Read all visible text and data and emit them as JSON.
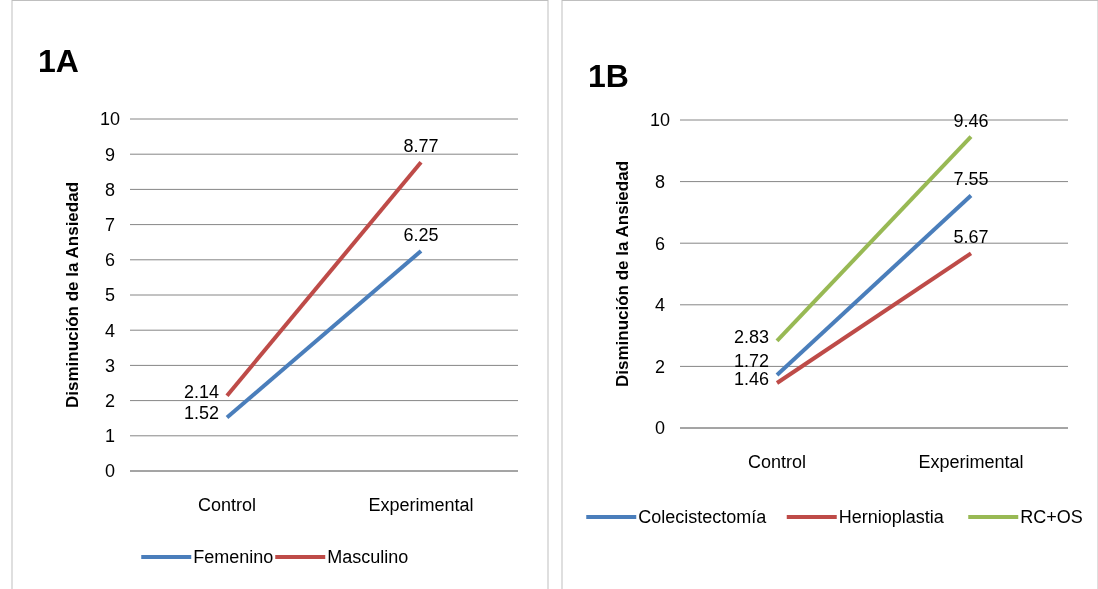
{
  "chart_data": [
    {
      "type": "line",
      "title": "1A",
      "ylabel": "Disminución de la Ansiedad",
      "categories": [
        "Control",
        "Experimental"
      ],
      "series": [
        {
          "name": "Femenino",
          "color": "#4a7ebb",
          "values": [
            1.52,
            6.25
          ]
        },
        {
          "name": "Masculino",
          "color": "#be4b48",
          "values": [
            2.14,
            8.77
          ]
        }
      ],
      "ylim": [
        0,
        10
      ],
      "yticks": [
        0,
        1,
        2,
        3,
        4,
        5,
        6,
        7,
        8,
        9,
        10
      ],
      "grid": "y",
      "legend": "bottom",
      "data_labels": true,
      "marker": "none",
      "line_style": "solid"
    },
    {
      "type": "line",
      "title": "1B",
      "ylabel": "Disminución de la Ansiedad",
      "categories": [
        "Control",
        "Experimental"
      ],
      "series": [
        {
          "name": "Colecistectomía",
          "color": "#4a7ebb",
          "values": [
            1.72,
            7.55
          ]
        },
        {
          "name": "Hernioplastia",
          "color": "#be4b48",
          "values": [
            1.46,
            5.67
          ]
        },
        {
          "name": "RC+OS",
          "color": "#98b954",
          "values": [
            2.83,
            9.46
          ]
        }
      ],
      "ylim": [
        0,
        10
      ],
      "yticks": [
        0,
        2,
        4,
        6,
        8,
        10
      ],
      "grid": "y",
      "legend": "bottom",
      "data_labels": true,
      "marker": "none",
      "line_style": "solid"
    }
  ]
}
